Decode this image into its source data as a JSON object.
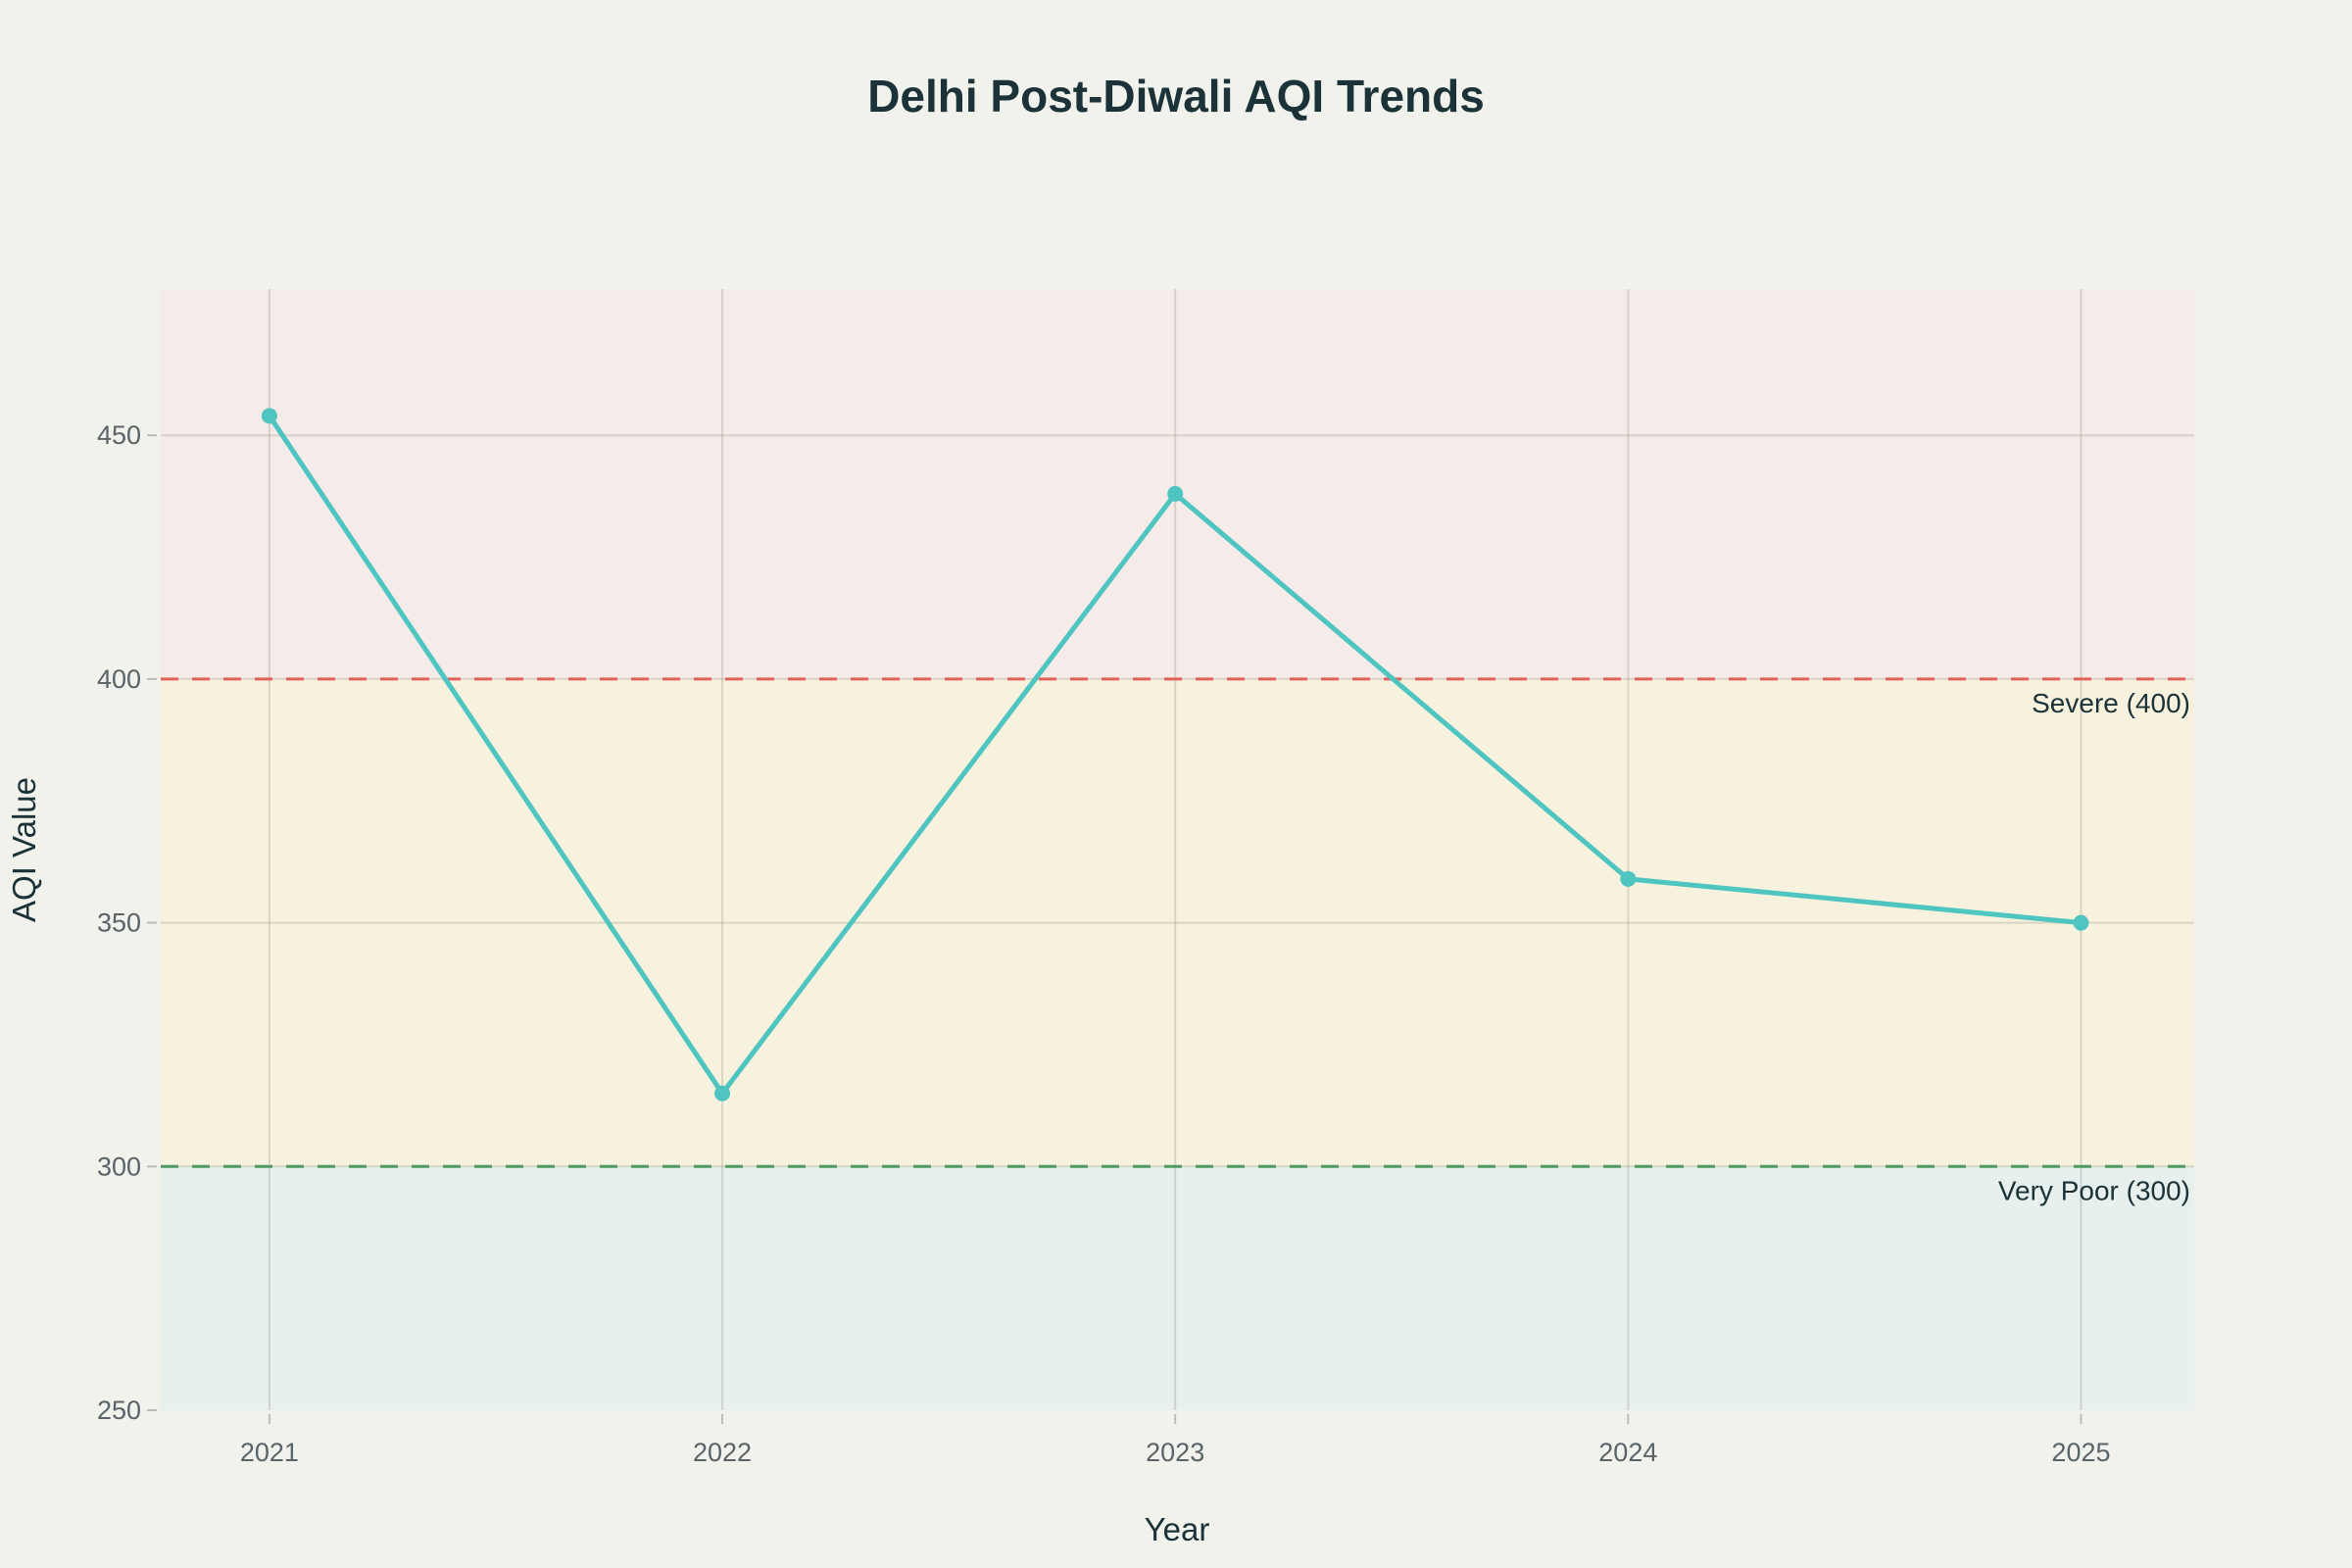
{
  "chart_data": {
    "type": "line",
    "title": "Delhi Post-Diwali AQI Trends",
    "xlabel": "Year",
    "ylabel": "AQI Value",
    "x": [
      "2021",
      "2022",
      "2023",
      "2024",
      "2025"
    ],
    "series": [
      {
        "values": [
          454,
          315,
          438,
          359,
          350
        ],
        "color": "#4ec5c1"
      }
    ],
    "xlim": [
      2020.76,
      2025.25
    ],
    "ylim": [
      250,
      480
    ],
    "yticks": [
      250,
      300,
      350,
      400,
      450
    ],
    "xticks": [
      "2021",
      "2022",
      "2023",
      "2024",
      "2025"
    ],
    "grid": true,
    "bands": [
      {
        "from": 400,
        "to": 480,
        "color": "#f5ece9"
      },
      {
        "from": 300,
        "to": 400,
        "color": "#f7f2de"
      },
      {
        "from": 250,
        "to": 300,
        "color": "#e7f0ec"
      }
    ],
    "threshold_lines": [
      {
        "value": 400,
        "label": "Severe (400)",
        "color": "#e0605a"
      },
      {
        "value": 300,
        "label": "Very Poor (300)",
        "color": "#4f9a62"
      }
    ]
  }
}
